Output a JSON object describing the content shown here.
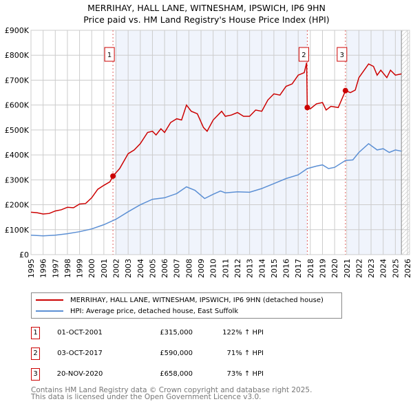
{
  "title_line1": "MERRIHAY, HALL LANE, WITNESHAM, IPSWICH, IP6 9HN",
  "title_line2": "Price paid vs. HM Land Registry's House Price Index (HPI)",
  "chart_data": {
    "type": "line",
    "title": "Price paid vs. HM Land Registry's House Price Index (HPI)",
    "xlim": [
      1995,
      2026
    ],
    "ylim": [
      0,
      900000
    ],
    "yticks": [
      0,
      100000,
      200000,
      300000,
      400000,
      500000,
      600000,
      700000,
      800000,
      900000
    ],
    "ytick_labels": [
      "£0",
      "£100K",
      "£200K",
      "£300K",
      "£400K",
      "£500K",
      "£600K",
      "£700K",
      "£800K",
      "£900K"
    ],
    "xticks": [
      "1995",
      "1996",
      "1997",
      "1998",
      "1999",
      "2000",
      "2001",
      "2002",
      "2003",
      "2004",
      "2005",
      "2006",
      "2007",
      "2008",
      "2009",
      "2010",
      "2011",
      "2012",
      "2013",
      "2014",
      "2015",
      "2016",
      "2017",
      "2018",
      "2019",
      "2020",
      "2021",
      "2022",
      "2023",
      "2024",
      "2025",
      "2026"
    ],
    "grid": true,
    "forecast_start": 2025.5,
    "series": [
      {
        "name": "MERRIHAY, HALL LANE, WITNESHAM, IPSWICH, IP6 9HN (detached house)",
        "color": "#cc0000",
        "x": [
          1995,
          1995.5,
          1996,
          1996.5,
          1997,
          1997.5,
          1998,
          1998.5,
          1999,
          1999.5,
          2000,
          2000.5,
          2001,
          2001.5,
          2001.75,
          2002.3,
          2003,
          2003.5,
          2004,
          2004.6,
          2005,
          2005.3,
          2005.7,
          2006,
          2006.5,
          2007,
          2007.4,
          2007.8,
          2008.2,
          2008.7,
          2009.2,
          2009.5,
          2010,
          2010.7,
          2011,
          2011.5,
          2012,
          2012.5,
          2013,
          2013.5,
          2014,
          2014.5,
          2015,
          2015.5,
          2016,
          2016.5,
          2017,
          2017.5,
          2017.7,
          2017.75,
          2018,
          2018.5,
          2019,
          2019.3,
          2019.7,
          2020.3,
          2020.9,
          2021.3,
          2021.7,
          2022,
          2022.8,
          2023.2,
          2023.5,
          2023.8,
          2024.3,
          2024.6,
          2025,
          2025.5
        ],
        "y": [
          170000,
          168000,
          163000,
          165000,
          175000,
          180000,
          190000,
          188000,
          203000,
          205000,
          228000,
          262000,
          278000,
          292000,
          315000,
          345000,
          405000,
          420000,
          445000,
          490000,
          495000,
          480000,
          505000,
          490000,
          530000,
          545000,
          540000,
          600000,
          575000,
          565000,
          510000,
          495000,
          540000,
          575000,
          555000,
          560000,
          570000,
          555000,
          555000,
          580000,
          575000,
          620000,
          645000,
          640000,
          675000,
          685000,
          720000,
          730000,
          770000,
          590000,
          585000,
          605000,
          610000,
          580000,
          595000,
          590000,
          658000,
          650000,
          660000,
          710000,
          765000,
          755000,
          720000,
          740000,
          710000,
          740000,
          720000,
          725000
        ]
      },
      {
        "name": "HPI: Average price, detached house, East Suffolk",
        "color": "#5b8fd4",
        "x": [
          1995,
          1996,
          1997,
          1998,
          1999,
          2000,
          2001,
          2002,
          2003,
          2004,
          2005,
          2006,
          2007,
          2007.8,
          2008.5,
          2009.3,
          2010,
          2010.6,
          2011,
          2012,
          2013,
          2014,
          2015,
          2016,
          2017,
          2017.75,
          2018.5,
          2019,
          2019.5,
          2020,
          2020.9,
          2021.5,
          2022,
          2022.8,
          2023.5,
          2024,
          2024.5,
          2025,
          2025.5
        ],
        "y": [
          78000,
          75000,
          78000,
          84000,
          92000,
          103000,
          120000,
          142000,
          172000,
          200000,
          222000,
          228000,
          245000,
          272000,
          258000,
          225000,
          242000,
          255000,
          248000,
          252000,
          250000,
          265000,
          285000,
          305000,
          320000,
          345000,
          355000,
          360000,
          345000,
          350000,
          378000,
          380000,
          410000,
          445000,
          420000,
          425000,
          410000,
          420000,
          415000
        ]
      }
    ]
  },
  "sales": [
    {
      "num": "1",
      "x": 2001.75,
      "price_value": 315000,
      "date": "01-OCT-2001",
      "price": "£315,000",
      "hpi": "122% ↑ HPI"
    },
    {
      "num": "2",
      "x": 2017.75,
      "price_value": 590000,
      "date": "03-OCT-2017",
      "price": "£590,000",
      "hpi": "71% ↑ HPI"
    },
    {
      "num": "3",
      "x": 2020.89,
      "price_value": 658000,
      "date": "20-NOV-2020",
      "price": "£658,000",
      "hpi": "73% ↑ HPI"
    }
  ],
  "legend": {
    "property": "MERRIHAY, HALL LANE, WITNESHAM, IPSWICH, IP6 9HN (detached house)",
    "hpi": "HPI: Average price, detached house, East Suffolk"
  },
  "footer": {
    "line1": "Contains HM Land Registry data © Crown copyright and database right 2025.",
    "line2": "This data is licensed under the Open Government Licence v3.0."
  }
}
